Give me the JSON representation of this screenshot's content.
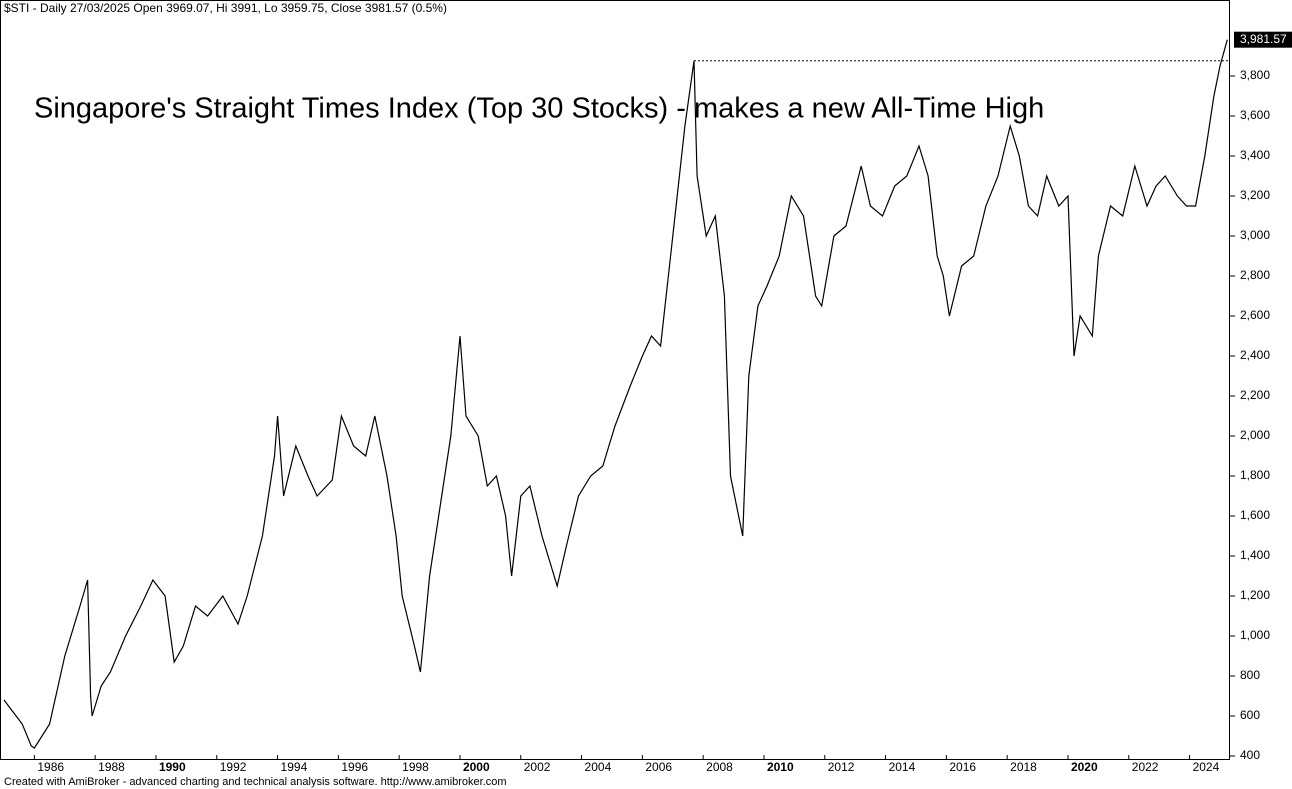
{
  "chart_data": {
    "type": "line",
    "subtitle": "$STI - Daily 27/03/2025 Open 3969.07, Hi 3991, Lo 3959.75, Close 3981.57 (0.5%)",
    "title": "Singapore's Straight Times Index (Top 30 Stocks) - makes a new All-Time High",
    "footer": "Created with AmiBroker - advanced charting and technical analysis software. http://www.amibroker.com",
    "color": "#000000",
    "x": [
      1985.0,
      1985.3,
      1985.6,
      1985.9,
      1986.0,
      1986.5,
      1987.0,
      1987.5,
      1987.75,
      1987.85,
      1987.9,
      1988.2,
      1988.5,
      1989.0,
      1989.5,
      1989.9,
      1990.3,
      1990.6,
      1990.9,
      1991.3,
      1991.7,
      1992.2,
      1992.7,
      1993.0,
      1993.5,
      1993.9,
      1994.0,
      1994.2,
      1994.6,
      1995.0,
      1995.3,
      1995.8,
      1996.1,
      1996.5,
      1996.9,
      1997.2,
      1997.6,
      1997.9,
      1998.1,
      1998.5,
      1998.7,
      1999.0,
      1999.4,
      1999.7,
      2000.0,
      2000.2,
      2000.6,
      2000.9,
      2001.2,
      2001.5,
      2001.7,
      2002.0,
      2002.3,
      2002.7,
      2003.2,
      2003.5,
      2003.9,
      2004.3,
      2004.7,
      2005.1,
      2005.6,
      2006.0,
      2006.3,
      2006.6,
      2007.0,
      2007.4,
      2007.7,
      2007.8,
      2008.1,
      2008.4,
      2008.7,
      2008.9,
      2009.1,
      2009.3,
      2009.5,
      2009.8,
      2010.1,
      2010.5,
      2010.9,
      2011.3,
      2011.7,
      2011.9,
      2012.3,
      2012.7,
      2013.2,
      2013.5,
      2013.9,
      2014.3,
      2014.7,
      2015.1,
      2015.4,
      2015.7,
      2015.9,
      2016.1,
      2016.5,
      2016.9,
      2017.3,
      2017.7,
      2018.1,
      2018.4,
      2018.7,
      2019.0,
      2019.3,
      2019.7,
      2020.0,
      2020.2,
      2020.4,
      2020.8,
      2021.0,
      2021.4,
      2021.8,
      2022.2,
      2022.6,
      2022.9,
      2023.2,
      2023.6,
      2023.9,
      2024.2,
      2024.5,
      2024.8,
      2025.0,
      2025.24
    ],
    "values": [
      680,
      620,
      560,
      450,
      440,
      560,
      900,
      1150,
      1280,
      700,
      600,
      750,
      820,
      1000,
      1150,
      1280,
      1200,
      870,
      950,
      1150,
      1100,
      1200,
      1060,
      1200,
      1500,
      1900,
      2100,
      1700,
      1950,
      1800,
      1700,
      1780,
      2100,
      1950,
      1900,
      2100,
      1800,
      1500,
      1200,
      950,
      820,
      1300,
      1700,
      2000,
      2500,
      2100,
      2000,
      1750,
      1800,
      1600,
      1300,
      1700,
      1750,
      1500,
      1250,
      1450,
      1700,
      1800,
      1850,
      2050,
      2250,
      2400,
      2500,
      2450,
      3000,
      3550,
      3876,
      3300,
      3000,
      3100,
      2700,
      1800,
      1650,
      1500,
      2300,
      2650,
      2750,
      2900,
      3200,
      3100,
      2700,
      2650,
      3000,
      3050,
      3350,
      3150,
      3100,
      3250,
      3300,
      3450,
      3300,
      2900,
      2800,
      2600,
      2850,
      2900,
      3150,
      3300,
      3550,
      3400,
      3150,
      3100,
      3300,
      3150,
      3200,
      2400,
      2600,
      2500,
      2900,
      3150,
      3100,
      3350,
      3150,
      3250,
      3300,
      3200,
      3150,
      3150,
      3400,
      3700,
      3850,
      3981.57
    ],
    "last_value": {
      "value": 3981.57,
      "label": "3,981.57"
    },
    "reference_line": {
      "x": 2007.7,
      "value": 3876
    },
    "xlim": [
      1984.87,
      2025.33
    ],
    "ylim": [
      380,
      4180
    ],
    "xticks": [
      1986,
      1988,
      1990,
      1992,
      1994,
      1996,
      1998,
      2000,
      2002,
      2004,
      2006,
      2008,
      2010,
      2012,
      2014,
      2016,
      2018,
      2020,
      2022,
      2024
    ],
    "yticks": [
      400,
      600,
      800,
      {
        "value": 1000,
        "label": "1,000"
      },
      {
        "value": 1200,
        "label": "1,200"
      },
      {
        "value": 1400,
        "label": "1,400"
      },
      {
        "value": 1600,
        "label": "1,600"
      },
      {
        "value": 1800,
        "label": "1,800"
      },
      {
        "value": 2000,
        "label": "2,000"
      },
      {
        "value": 2200,
        "label": "2,200"
      },
      {
        "value": 2400,
        "label": "2,400"
      },
      {
        "value": 2600,
        "label": "2,600"
      },
      {
        "value": 2800,
        "label": "2,800"
      },
      {
        "value": 3000,
        "label": "3,000"
      },
      {
        "value": 3200,
        "label": "3,200"
      },
      {
        "value": 3400,
        "label": "3,400"
      },
      {
        "value": 3600,
        "label": "3,600"
      },
      {
        "value": 3800,
        "label": "3,800"
      }
    ]
  }
}
